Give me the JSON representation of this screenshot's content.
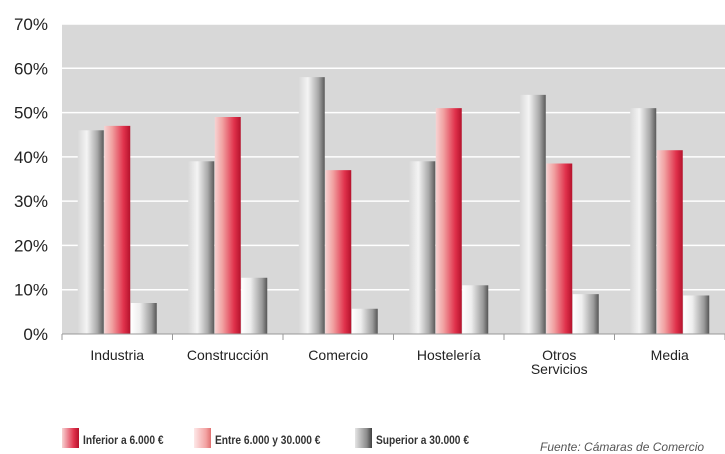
{
  "chart_data": {
    "type": "bar",
    "categories": [
      "Industria",
      "Construcción",
      "Comercio",
      "Hostelería",
      "Otros\nServicios",
      "Media"
    ],
    "series": [
      {
        "name": "Superior a 30.000 €",
        "values": [
          46,
          39,
          58,
          39,
          54,
          51
        ]
      },
      {
        "name": "Inferior a 6.000 €",
        "values": [
          47,
          49,
          37,
          51,
          38.5,
          41.5
        ]
      },
      {
        "name": "Entre 6.000 y 30.000 €",
        "values": [
          7,
          12.7,
          5.7,
          11,
          9,
          8.7
        ]
      }
    ],
    "y_ticks": [
      "0%",
      "10%",
      "20%",
      "30%",
      "40%",
      "50%",
      "60%",
      "70%"
    ],
    "ylim": [
      0,
      70
    ],
    "grid": true,
    "legend_position": "bottom-left"
  },
  "legend": [
    {
      "label": "Inferior a 6.000 €",
      "color": "#d81e3c"
    },
    {
      "label": "Entre 6.000 y 30.000 €",
      "color": "#f08f8f"
    },
    {
      "label": "Superior a 30.000 €",
      "color": "#666666"
    }
  ],
  "source": "Fuente: Cámaras de Comercio"
}
